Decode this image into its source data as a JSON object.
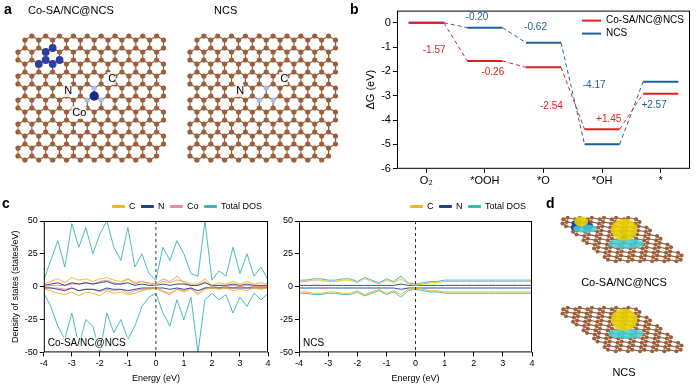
{
  "chart_data": [
    {
      "type": "line",
      "panel_label": "b",
      "categories": [
        "O₂",
        "*OOH",
        "*O",
        "*OH",
        "*"
      ],
      "ylabel": "ΔG (eV)",
      "ylim": [
        -6,
        0.5
      ],
      "yticks": [
        0,
        -1,
        -2,
        -3,
        -4,
        -5,
        -6
      ],
      "legend": "upper right",
      "line_style": "step",
      "series": [
        {
          "name": "Co-SA/NC@NCS",
          "color": "#e02020",
          "values": [
            0,
            -1.57,
            -1.83,
            -4.37,
            -2.92
          ],
          "step_labels": [
            "-1.57",
            "-0.26",
            "-2.54",
            "+1.45"
          ]
        },
        {
          "name": "NCS",
          "color": "#1f5fa0",
          "values": [
            0,
            -0.2,
            -0.82,
            -4.99,
            -2.42
          ],
          "step_labels": [
            "-0.20",
            "-0.62",
            "-4.17",
            "+2.57"
          ]
        }
      ]
    },
    {
      "type": "line",
      "panel_label": "c",
      "title": "Co-SA/NC@NCS",
      "xlabel": "Energy (eV)",
      "ylabel": "Density of states (states/eV)",
      "x": [
        -4,
        -3.75,
        -3.5,
        -3.25,
        -3,
        -2.75,
        -2.5,
        -2.25,
        -2,
        -1.75,
        -1.5,
        -1.25,
        -1,
        -0.75,
        -0.5,
        -0.25,
        0,
        0.25,
        0.5,
        0.75,
        1,
        1.25,
        1.5,
        1.75,
        2,
        2.25,
        2.5,
        2.75,
        3,
        3.25,
        3.5,
        3.75,
        4
      ],
      "xlim": [
        -4,
        4
      ],
      "xticks": [
        -4,
        -3,
        -2,
        -1,
        0,
        1,
        2,
        3,
        4
      ],
      "ylim": [
        -50,
        50
      ],
      "yticks": [
        -50,
        -25,
        0,
        25,
        50
      ],
      "legend": "top",
      "vline": 0,
      "series": [
        {
          "name": "C",
          "color": "#f2b31b",
          "values": [
            2,
            4,
            6,
            3,
            7,
            5,
            6,
            4,
            6,
            7,
            5,
            4,
            6,
            3,
            4,
            2,
            1,
            4,
            3,
            5,
            4,
            2,
            2,
            6,
            1,
            3,
            2,
            4,
            2,
            4,
            2,
            3,
            2
          ],
          "values_down": [
            -2,
            -3,
            -5,
            -6,
            -4,
            -7,
            -4,
            -5,
            -7,
            -3,
            -5,
            -4,
            -6,
            -5,
            -3,
            -2,
            -1,
            -3,
            -5,
            -2,
            -4,
            -2,
            -6,
            -2,
            -1,
            -2,
            -1,
            -3,
            -2,
            -3,
            -1,
            -2,
            -1
          ]
        },
        {
          "name": "N",
          "color": "#1b3a8c",
          "values": [
            1,
            2,
            3,
            1,
            3,
            2,
            3,
            2,
            3,
            4,
            2,
            2,
            3,
            1,
            2,
            1,
            1,
            2,
            1,
            2,
            2,
            1,
            1,
            3,
            1,
            1,
            1,
            2,
            1,
            2,
            1,
            1,
            1
          ],
          "values_down": [
            -1,
            -1,
            -2,
            -3,
            -1,
            -3,
            -2,
            -2,
            -3,
            -1,
            -2,
            -2,
            -3,
            -2,
            -1,
            -1,
            -1,
            -1,
            -2,
            -1,
            -2,
            -1,
            -3,
            -1,
            -1,
            -1,
            -1,
            -1,
            -1,
            -1,
            -1,
            -1,
            -1
          ]
        },
        {
          "name": "Co",
          "color": "#f08a8a",
          "values": [
            0,
            1,
            1,
            1,
            2,
            2,
            3,
            2,
            4,
            5,
            3,
            2,
            6,
            2,
            4,
            3,
            2,
            6,
            4,
            8,
            3,
            1,
            1,
            4,
            0,
            1,
            0,
            1,
            0,
            1,
            0,
            0,
            0
          ],
          "values_down": [
            0,
            -1,
            -1,
            -2,
            -1,
            -3,
            -2,
            -2,
            -4,
            -2,
            -3,
            -2,
            -5,
            -3,
            -2,
            -2,
            -1,
            -4,
            -6,
            -2,
            -3,
            -1,
            -5,
            -1,
            0,
            -1,
            0,
            -1,
            0,
            -1,
            0,
            0,
            0
          ]
        },
        {
          "name": "Total DOS",
          "color": "#35b5b5",
          "values": [
            5,
            20,
            35,
            15,
            48,
            30,
            45,
            25,
            40,
            50,
            30,
            20,
            45,
            15,
            25,
            10,
            5,
            30,
            20,
            35,
            25,
            10,
            8,
            50,
            5,
            12,
            8,
            30,
            10,
            25,
            8,
            15,
            5
          ],
          "values_down": [
            -5,
            -15,
            -30,
            -40,
            -20,
            -45,
            -25,
            -30,
            -50,
            -20,
            -35,
            -25,
            -40,
            -30,
            -15,
            -8,
            -5,
            -20,
            -30,
            -10,
            -25,
            -8,
            -50,
            -10,
            -5,
            -10,
            -6,
            -20,
            -8,
            -15,
            -5,
            -10,
            -5
          ]
        }
      ]
    },
    {
      "type": "line",
      "title": "NCS",
      "xlabel": "Energy (eV)",
      "x": [
        -4,
        -3.75,
        -3.5,
        -3.25,
        -3,
        -2.75,
        -2.5,
        -2.25,
        -2,
        -1.75,
        -1.5,
        -1.25,
        -1,
        -0.75,
        -0.5,
        -0.25,
        0,
        0.25,
        0.5,
        0.75,
        1,
        1.25,
        1.5,
        1.75,
        2,
        2.25,
        2.5,
        2.75,
        3,
        3.25,
        3.5,
        3.75,
        4
      ],
      "xlim": [
        -4,
        4
      ],
      "xticks": [
        -4,
        -3,
        -2,
        -1,
        0,
        1,
        2,
        3,
        4
      ],
      "ylim": [
        -50,
        50
      ],
      "yticks": [
        -50,
        -25,
        0,
        25,
        50
      ],
      "legend": "top",
      "vline": 0,
      "series": [
        {
          "name": "C",
          "color": "#f2b31b",
          "values": [
            4,
            4,
            5,
            5,
            4,
            4,
            5,
            5,
            3,
            6,
            4,
            2,
            5,
            3,
            6,
            2,
            1,
            2,
            3,
            3,
            4,
            4,
            4,
            4,
            4,
            4,
            4,
            4,
            4,
            4,
            4,
            4,
            4
          ],
          "values_down": [
            -4,
            -4,
            -5,
            -5,
            -4,
            -4,
            -5,
            -5,
            -3,
            -6,
            -4,
            -2,
            -5,
            -3,
            -6,
            -2,
            -1,
            -2,
            -3,
            -3,
            -4,
            -4,
            -4,
            -4,
            -4,
            -4,
            -4,
            -4,
            -4,
            -4,
            -4,
            -4,
            -4
          ]
        },
        {
          "name": "N",
          "color": "#1b3a8c",
          "values": [
            1,
            1,
            1,
            1,
            1,
            1,
            1,
            1,
            1,
            1,
            1,
            1,
            1,
            1,
            2,
            1,
            1,
            1,
            1,
            1,
            1,
            1,
            1,
            1,
            1,
            1,
            1,
            1,
            1,
            1,
            1,
            1,
            1
          ],
          "values_down": [
            -1,
            -1,
            -1,
            -1,
            -1,
            -1,
            -1,
            -1,
            -1,
            -1,
            -1,
            -1,
            -1,
            -1,
            -2,
            -1,
            -1,
            -1,
            -1,
            -1,
            -1,
            -1,
            -1,
            -1,
            -1,
            -1,
            -1,
            -1,
            -1,
            -1,
            -1,
            -1,
            -1
          ]
        },
        {
          "name": "Total DOS",
          "color": "#35b5b5",
          "values": [
            5,
            5,
            6,
            6,
            5,
            5,
            6,
            6,
            4,
            7,
            5,
            3,
            6,
            4,
            8,
            3,
            2,
            3,
            4,
            4,
            5,
            5,
            5,
            5,
            5,
            5,
            5,
            5,
            5,
            5,
            5,
            5,
            5
          ],
          "values_down": [
            -5,
            -5,
            -6,
            -6,
            -5,
            -5,
            -6,
            -6,
            -4,
            -7,
            -5,
            -3,
            -6,
            -4,
            -8,
            -3,
            -2,
            -3,
            -4,
            -4,
            -5,
            -5,
            -5,
            -5,
            -5,
            -5,
            -5,
            -5,
            -5,
            -5,
            -5,
            -5,
            -5
          ]
        }
      ]
    }
  ],
  "diagrams": {
    "a": {
      "label": "a",
      "structures": [
        {
          "title": "Co-SA/NC@NCS",
          "atom_labels": [
            "C",
            "N",
            "Co"
          ]
        },
        {
          "title": "NCS",
          "atom_labels": [
            "C",
            "N"
          ]
        }
      ]
    },
    "d": {
      "label": "d",
      "structures": [
        {
          "title": "Co-SA/NC@NCS"
        },
        {
          "title": "NCS"
        }
      ]
    }
  }
}
